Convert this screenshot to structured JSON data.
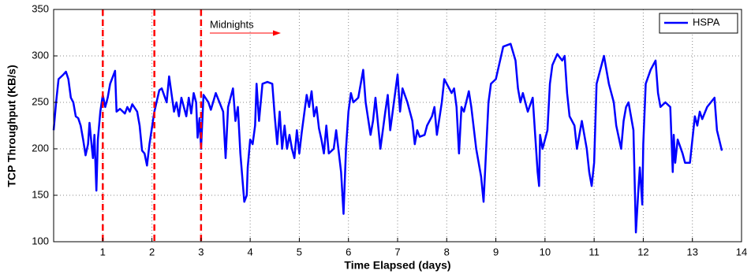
{
  "chart_data": {
    "type": "line",
    "xlabel": "Time Elapsed (days)",
    "ylabel": "TCP Throughput (KB/s)",
    "annotation": "Midnights",
    "vlines": [
      1,
      2.05,
      3
    ],
    "vline_color": "#ff0000",
    "xlim": [
      0,
      14
    ],
    "xticks": [
      1,
      2,
      3,
      4,
      5,
      6,
      7,
      8,
      9,
      10,
      11,
      12,
      13,
      14
    ],
    "ylim": [
      100,
      350
    ],
    "yticks": [
      100,
      150,
      200,
      250,
      300,
      350
    ],
    "grid": true,
    "legend": "upper right",
    "x": [
      0,
      0.05,
      0.1,
      0.2,
      0.25,
      0.3,
      0.35,
      0.4,
      0.45,
      0.5,
      0.55,
      0.6,
      0.65,
      0.7,
      0.73,
      0.78,
      0.8,
      0.83,
      0.87,
      0.9,
      0.95,
      1.0,
      1.05,
      1.1,
      1.15,
      1.25,
      1.28,
      1.35,
      1.45,
      1.5,
      1.55,
      1.6,
      1.7,
      1.75,
      1.8,
      1.85,
      1.9,
      1.95,
      2.05,
      2.15,
      2.2,
      2.3,
      2.35,
      2.45,
      2.5,
      2.55,
      2.6,
      2.7,
      2.75,
      2.8,
      2.85,
      2.9,
      2.93,
      2.97,
      3.0,
      3.05,
      3.15,
      3.2,
      3.3,
      3.45,
      3.5,
      3.55,
      3.65,
      3.7,
      3.75,
      3.8,
      3.88,
      3.93,
      3.95,
      4.0,
      4.05,
      4.1,
      4.13,
      4.18,
      4.25,
      4.35,
      4.45,
      4.5,
      4.55,
      4.6,
      4.65,
      4.7,
      4.75,
      4.8,
      4.85,
      4.9,
      4.95,
      5.0,
      5.05,
      5.15,
      5.2,
      5.25,
      5.3,
      5.35,
      5.4,
      5.45,
      5.5,
      5.55,
      5.6,
      5.7,
      5.75,
      5.85,
      5.9,
      5.95,
      6.0,
      6.05,
      6.1,
      6.2,
      6.3,
      6.35,
      6.45,
      6.5,
      6.55,
      6.65,
      6.75,
      6.8,
      6.85,
      6.95,
      7.0,
      7.05,
      7.1,
      7.2,
      7.3,
      7.35,
      7.4,
      7.45,
      7.55,
      7.6,
      7.7,
      7.75,
      7.8,
      7.9,
      7.95,
      8.1,
      8.15,
      8.2,
      8.25,
      8.3,
      8.35,
      8.45,
      8.5,
      8.6,
      8.7,
      8.75,
      8.85,
      8.9,
      9.0,
      9.15,
      9.3,
      9.4,
      9.45,
      9.5,
      9.55,
      9.65,
      9.75,
      9.85,
      9.88,
      9.9,
      9.95,
      10.05,
      10.1,
      10.15,
      10.25,
      10.35,
      10.4,
      10.45,
      10.5,
      10.6,
      10.65,
      10.75,
      10.8,
      10.85,
      10.9,
      10.95,
      11.0,
      11.05,
      11.15,
      11.2,
      11.3,
      11.35,
      11.4,
      11.45,
      11.55,
      11.6,
      11.65,
      11.7,
      11.8,
      11.85,
      11.9,
      11.93,
      11.98,
      12.0,
      12.05,
      12.15,
      12.25,
      12.3,
      12.35,
      12.45,
      12.55,
      12.6,
      12.62,
      12.65,
      12.7,
      12.8,
      12.85,
      12.95,
      13.05,
      13.1,
      13.15,
      13.2,
      13.3,
      13.45,
      13.5,
      13.6
    ],
    "series": [
      {
        "name": "HSPA",
        "color": "#0000ff",
        "values": [
          220,
          250,
          275,
          280,
          283,
          275,
          255,
          250,
          235,
          233,
          225,
          210,
          193,
          205,
          228,
          200,
          190,
          215,
          155,
          210,
          240,
          258,
          245,
          255,
          270,
          284,
          240,
          243,
          238,
          245,
          240,
          248,
          240,
          225,
          198,
          195,
          182,
          205,
          240,
          263,
          265,
          250,
          278,
          240,
          250,
          235,
          255,
          235,
          255,
          238,
          260,
          250,
          212,
          233,
          200,
          258,
          250,
          242,
          260,
          240,
          190,
          245,
          265,
          230,
          245,
          195,
          143,
          150,
          180,
          210,
          205,
          225,
          270,
          230,
          270,
          272,
          270,
          235,
          205,
          240,
          200,
          225,
          200,
          215,
          200,
          190,
          220,
          195,
          218,
          258,
          245,
          262,
          235,
          245,
          222,
          210,
          195,
          225,
          195,
          200,
          220,
          175,
          130,
          200,
          240,
          260,
          250,
          255,
          285,
          250,
          215,
          230,
          255,
          200,
          240,
          258,
          220,
          260,
          280,
          240,
          265,
          250,
          230,
          205,
          220,
          213,
          215,
          225,
          235,
          245,
          215,
          250,
          275,
          260,
          265,
          245,
          195,
          245,
          240,
          262,
          245,
          200,
          170,
          143,
          250,
          270,
          275,
          310,
          313,
          295,
          265,
          250,
          260,
          240,
          255,
          175,
          160,
          215,
          200,
          220,
          270,
          290,
          302,
          295,
          300,
          260,
          235,
          225,
          200,
          230,
          215,
          200,
          175,
          160,
          185,
          270,
          290,
          300,
          270,
          260,
          250,
          225,
          200,
          230,
          245,
          250,
          220,
          110,
          155,
          180,
          140,
          205,
          270,
          285,
          295,
          260,
          245,
          250,
          245,
          175,
          215,
          185,
          210,
          195,
          185,
          185,
          235,
          225,
          240,
          232,
          245,
          255,
          220,
          198
        ]
      }
    ]
  }
}
